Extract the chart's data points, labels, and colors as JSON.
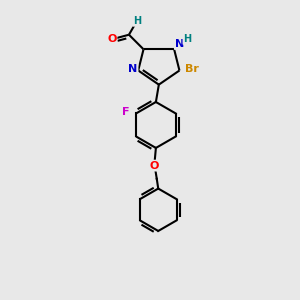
{
  "bg_color": "#e8e8e8",
  "bond_color": "#000000",
  "bond_width": 1.5,
  "atom_colors": {
    "N": "#0000cc",
    "O": "#ff0000",
    "Br": "#cc8800",
    "F": "#cc00cc",
    "H": "#008080",
    "C": "#000000"
  },
  "figsize": [
    3.0,
    3.0
  ],
  "dpi": 100
}
